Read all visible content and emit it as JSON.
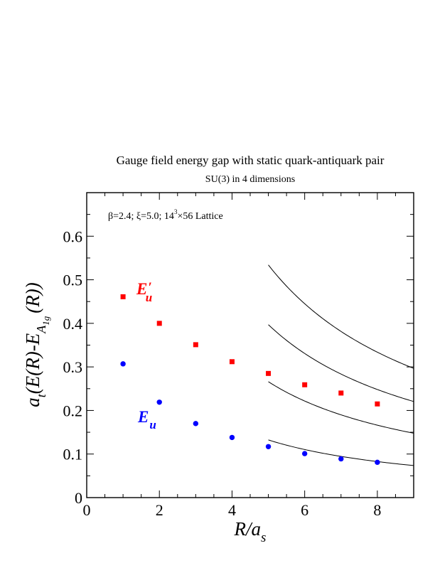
{
  "chart_data": {
    "type": "scatter",
    "title": "Gauge field energy gap with static quark-antiquark pair",
    "subtitle": "SU(3) in 4 dimensions",
    "annotation": {
      "prefix": "β=2.4;  ξ=5.0; 14",
      "sup": "3",
      "suffix": "×56 Lattice"
    },
    "xlabel": {
      "main": "R/a",
      "sub": "s"
    },
    "ylabel": {
      "a": "a",
      "a_sub": "t",
      "body": "(E(R)-E",
      "sub": "A",
      "subsub": "1g",
      "tail": "(R))"
    },
    "xlim": [
      0,
      9
    ],
    "ylim": [
      0,
      0.7
    ],
    "x_ticks": [
      0,
      2,
      4,
      6,
      8
    ],
    "x_tick_labels": [
      "0",
      "2",
      "4",
      "6",
      "8"
    ],
    "y_ticks": [
      0,
      0.1,
      0.2,
      0.3,
      0.4,
      0.5,
      0.6
    ],
    "y_tick_labels": [
      "0",
      "0.1",
      "0.2",
      "0.3",
      "0.4",
      "0.5",
      "0.6"
    ],
    "grid": false,
    "series": [
      {
        "name": "E′u",
        "label_main": "E",
        "label_prime": "′",
        "label_sub": "u",
        "color": "#ff0000",
        "marker": "square",
        "x": [
          1,
          2,
          3,
          4,
          5,
          6,
          7,
          8
        ],
        "y": [
          0.461,
          0.4,
          0.351,
          0.312,
          0.285,
          0.259,
          0.24,
          0.215
        ]
      },
      {
        "name": "Eu",
        "label_main": "E",
        "label_prime": "",
        "label_sub": "u",
        "color": "#0000ff",
        "marker": "circle",
        "x": [
          1,
          2,
          3,
          4,
          5,
          6,
          7,
          8
        ],
        "y": [
          0.307,
          0.219,
          0.17,
          0.138,
          0.117,
          0.101,
          0.089,
          0.081
        ]
      }
    ],
    "curves": [
      {
        "form": "c/R",
        "c": 0.662,
        "x_range": [
          5,
          9
        ],
        "color": "#000000"
      },
      {
        "form": "c/R",
        "c": 1.33,
        "x_range": [
          5,
          9
        ],
        "color": "#000000"
      },
      {
        "form": "c/R",
        "c": 1.985,
        "x_range": [
          5,
          9
        ],
        "color": "#000000"
      },
      {
        "form": "c/R",
        "c": 2.67,
        "x_range": [
          5,
          9
        ],
        "color": "#000000"
      }
    ]
  }
}
